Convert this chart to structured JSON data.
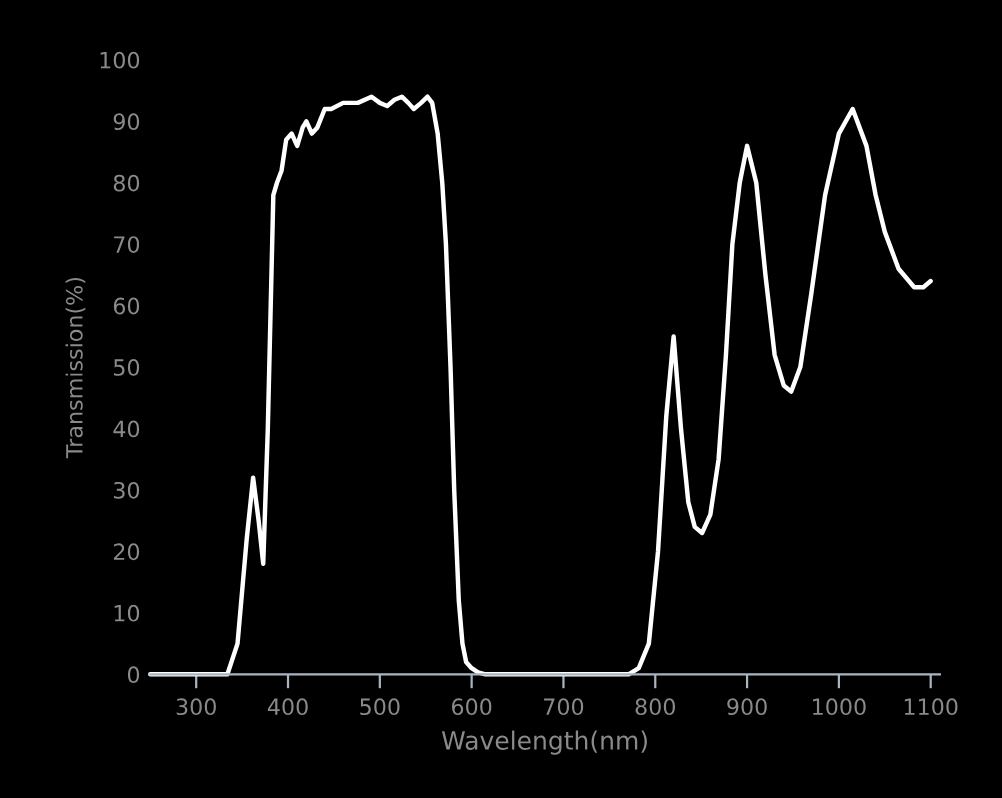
{
  "chart_data": {
    "type": "line",
    "xlabel": "Wavelength(nm)",
    "ylabel": "Transmission(%)",
    "x": [
      250,
      300,
      334,
      345,
      355,
      362,
      368,
      373,
      378,
      384,
      388,
      393,
      398,
      404,
      410,
      416,
      420,
      426,
      432,
      440,
      447,
      460,
      476,
      491,
      500,
      508,
      516,
      524,
      531,
      537,
      545,
      552,
      557,
      563,
      568,
      572,
      577,
      581,
      586,
      590,
      594,
      600,
      607,
      615,
      629,
      700,
      771,
      782,
      793,
      803,
      812,
      820,
      828,
      836,
      843,
      851,
      860,
      869,
      877,
      884,
      892,
      900,
      910,
      920,
      930,
      940,
      948,
      958,
      970,
      985,
      1000,
      1015,
      1030,
      1040,
      1050,
      1065,
      1082,
      1092,
      1100
    ],
    "series": [
      {
        "color": "#ffffff",
        "values": [
          0,
          0,
          0,
          5,
          22,
          32,
          25,
          18,
          40,
          78,
          80,
          82,
          87,
          88,
          86,
          89,
          90,
          88,
          89,
          92,
          92,
          93,
          93,
          94,
          93,
          92.5,
          93.5,
          94,
          93,
          92,
          93,
          94,
          93,
          88,
          80,
          70,
          50,
          30,
          12,
          5,
          2,
          1,
          0.3,
          0,
          0,
          0,
          0,
          1,
          5,
          20,
          42,
          55,
          40,
          28,
          24,
          23,
          26,
          35,
          52,
          70,
          80,
          86,
          80,
          65,
          52,
          47,
          46,
          50,
          62,
          78,
          88,
          92,
          86,
          78,
          72,
          66,
          63,
          63,
          64
        ]
      }
    ],
    "xlim": [
      250,
      1110
    ],
    "ylim": [
      0,
      100
    ],
    "xticks": [
      300,
      400,
      500,
      600,
      700,
      800,
      900,
      1000,
      1100
    ],
    "yticks": [
      0,
      10,
      20,
      30,
      40,
      50,
      60,
      70,
      80,
      90,
      100
    ]
  }
}
